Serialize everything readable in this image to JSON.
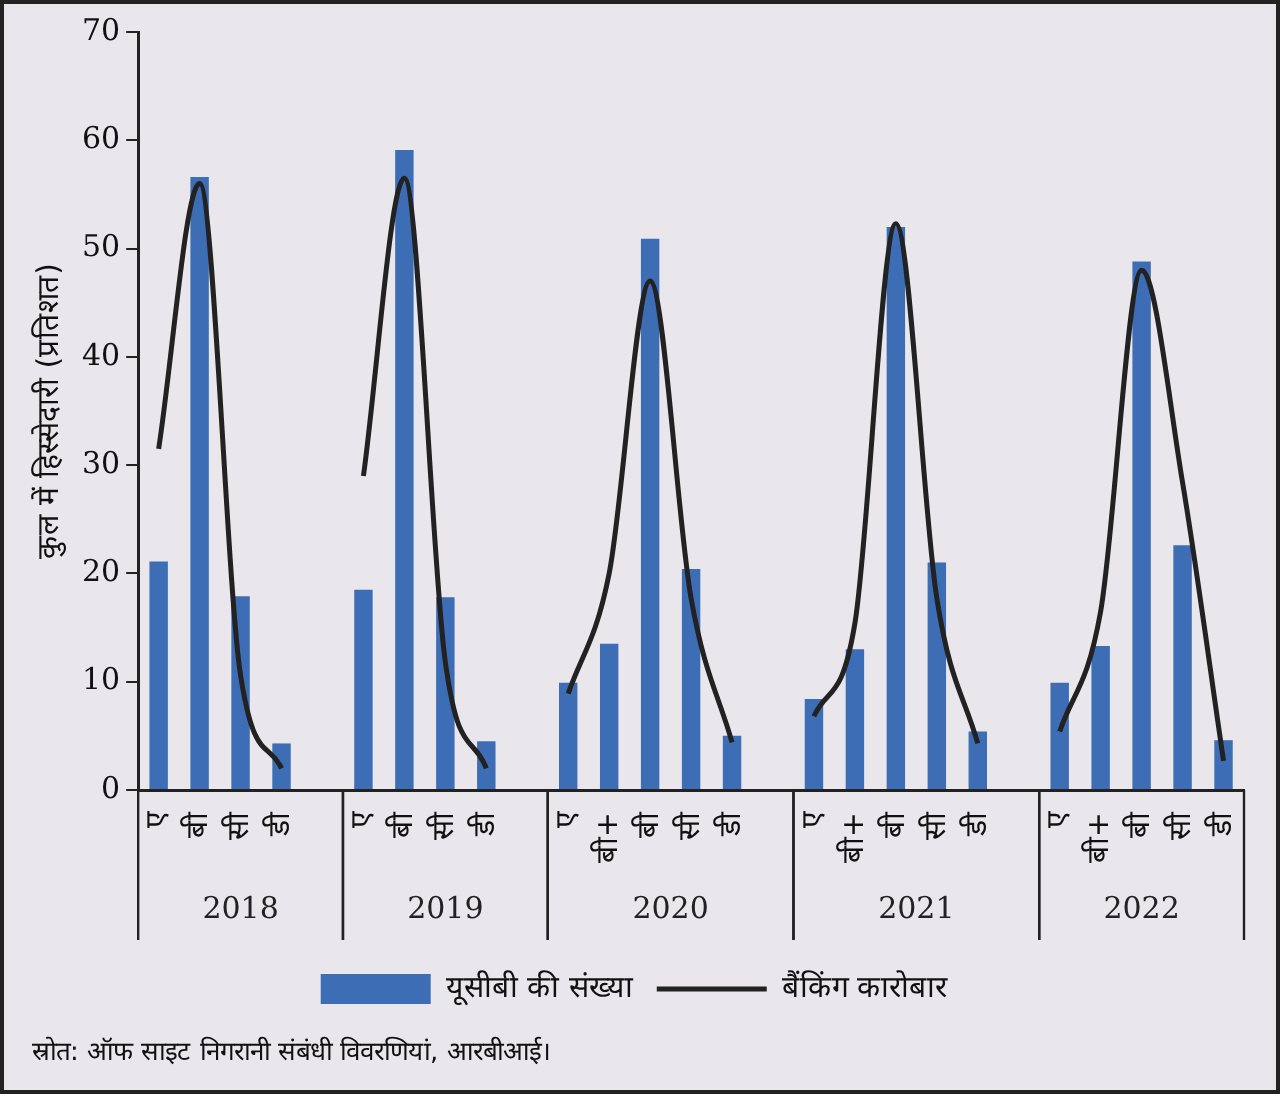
{
  "chart_data": {
    "type": "bar",
    "ylabel": "कुल में हिस्सेदारी (प्रतिशत)",
    "categories": [
      "ए",
      "बी",
      "सी",
      "डी",
      null,
      "ए",
      "बी",
      "सी",
      "डी",
      null,
      "ए",
      "बी+",
      "बी",
      "सी",
      "डी",
      null,
      "ए",
      "बी+",
      "बी",
      "सी",
      "डी",
      null,
      "ए",
      "बी+",
      "बी",
      "सी",
      "डी"
    ],
    "series": [
      {
        "name": "यूसीबी की संख्या",
        "color": "#3d6db5",
        "values": [
          21.1,
          56.6,
          17.9,
          4.3,
          null,
          18.5,
          59.1,
          17.8,
          4.5,
          null,
          9.9,
          13.5,
          50.9,
          20.4,
          5.0,
          null,
          8.4,
          13.0,
          52.0,
          21.0,
          5.4,
          null,
          9.9,
          13.3,
          48.8,
          22.6,
          4.6
        ]
      },
      {
        "name": "बैंकिंग कारोबार",
        "type": "line",
        "color": "#222222",
        "values": [
          31.5,
          56,
          10.6,
          2,
          null,
          29,
          56.5,
          11.8,
          2,
          null,
          8.9,
          20,
          47,
          17.7,
          4.4,
          null,
          6.8,
          15.4,
          52.3,
          17.7,
          4.3,
          null,
          5.4,
          16.5,
          48,
          28.4,
          2.7
        ]
      }
    ],
    "ylim": [
      0,
      70
    ],
    "yticks": [
      0,
      10,
      20,
      30,
      40,
      50,
      60,
      70
    ],
    "grid": false,
    "legend": "bottom",
    "marker": "none",
    "line_style": "solid",
    "annotations": [
      "2018",
      "2019",
      "2020",
      "2021",
      "2022",
      "स्रोत: ऑफ साइट निगरानी संबंधी विवरणियां, आरबीआई।"
    ]
  }
}
